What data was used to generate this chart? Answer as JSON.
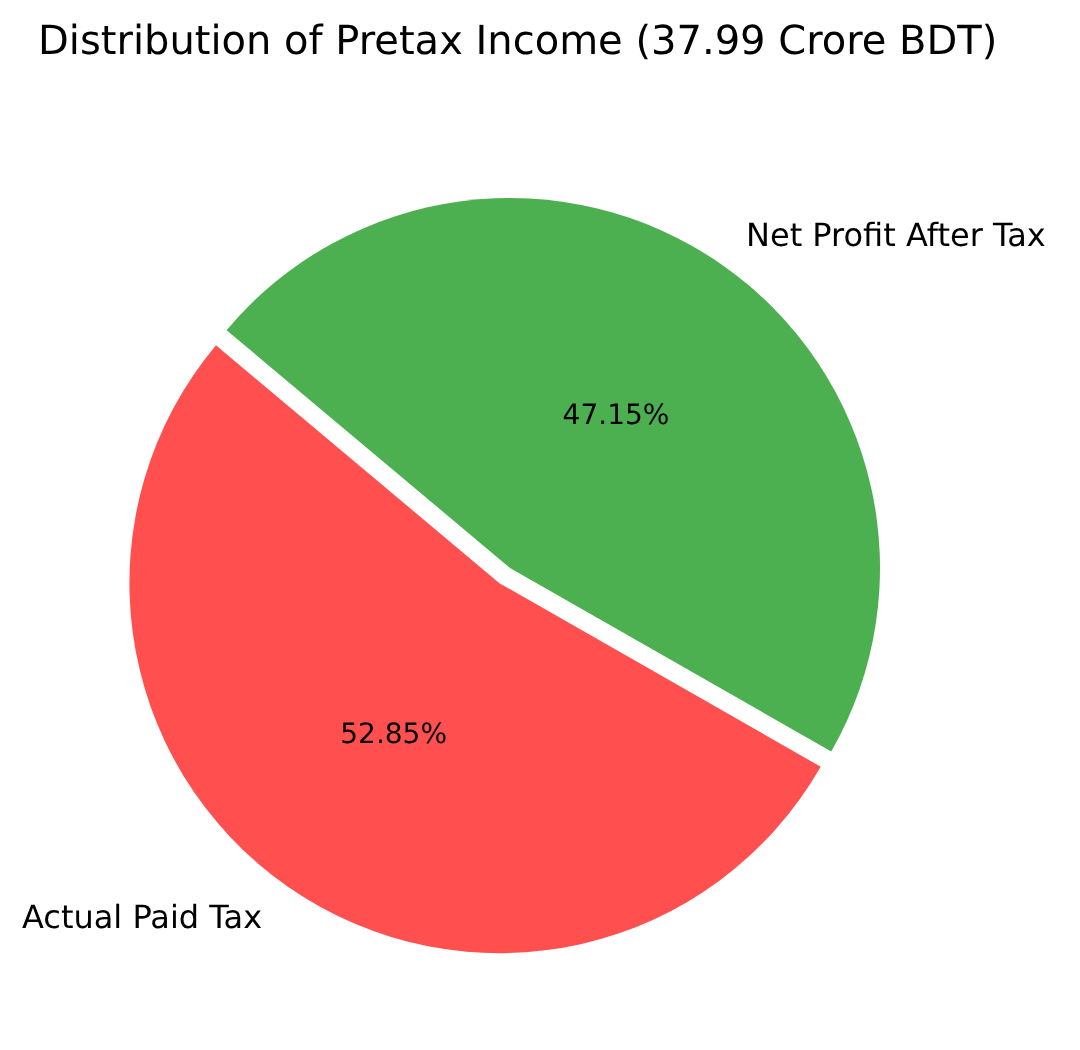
{
  "chart_data": {
    "type": "pie",
    "title": "Distribution of Pretax Income (37.99 Crore BDT)",
    "categories": [
      "Actual Paid Tax",
      "Net Profit After Tax"
    ],
    "values": [
      52.85,
      47.15
    ],
    "colors": [
      "#ff4f4f",
      "#4caf50"
    ],
    "value_labels": [
      "52.85%",
      "47.15%"
    ]
  }
}
